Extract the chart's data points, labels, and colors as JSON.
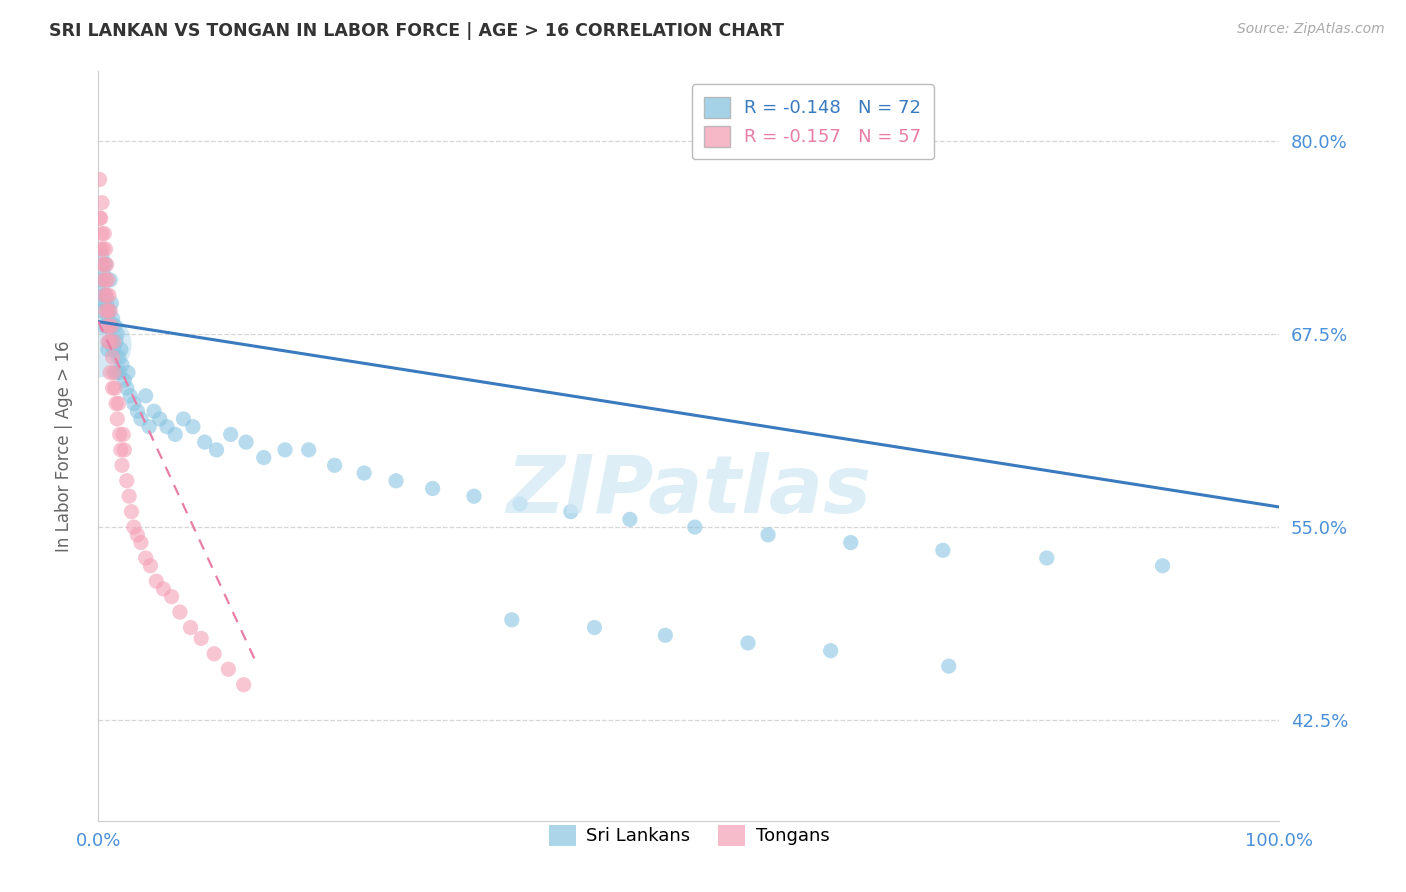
{
  "title": "SRI LANKAN VS TONGAN IN LABOR FORCE | AGE > 16 CORRELATION CHART",
  "source_text": "Source: ZipAtlas.com",
  "ylabel": "In Labor Force | Age > 16",
  "xlim": [
    0.0,
    1.0
  ],
  "ylim": [
    0.36,
    0.845
  ],
  "yticks": [
    0.425,
    0.55,
    0.675,
    0.8
  ],
  "ytick_labels": [
    "42.5%",
    "55.0%",
    "67.5%",
    "80.0%"
  ],
  "xticks": [
    0.0,
    1.0
  ],
  "xtick_labels": [
    "0.0%",
    "100.0%"
  ],
  "sri_lankan_R": -0.148,
  "sri_lankan_N": 72,
  "tongan_R": -0.157,
  "tongan_N": 57,
  "sri_lankan_color": "#89c4e1",
  "tongan_color": "#f4a0b5",
  "sri_lankan_line_color": "#3a7abf",
  "tongan_line_color": "#e87da8",
  "background_color": "#ffffff",
  "grid_color": "#cccccc",
  "title_color": "#333333",
  "axis_label_color": "#666666",
  "tick_label_color": "#4a90d9",
  "watermark": "ZIPatlas",
  "watermark_color": "#d0e8f5",
  "sl_line_x0": 0.0,
  "sl_line_x1": 1.0,
  "sl_line_y0": 0.683,
  "sl_line_y1": 0.563,
  "to_line_x0": 0.0,
  "to_line_x1": 0.135,
  "to_line_y0": 0.683,
  "to_line_y1": 0.46,
  "sl_x": [
    0.001,
    0.002,
    0.003,
    0.003,
    0.004,
    0.004,
    0.005,
    0.005,
    0.006,
    0.006,
    0.007,
    0.007,
    0.008,
    0.008,
    0.009,
    0.009,
    0.01,
    0.01,
    0.011,
    0.012,
    0.012,
    0.013,
    0.014,
    0.015,
    0.015,
    0.016,
    0.017,
    0.018,
    0.019,
    0.02,
    0.022,
    0.024,
    0.025,
    0.027,
    0.03,
    0.033,
    0.036,
    0.04,
    0.043,
    0.047,
    0.052,
    0.058,
    0.065,
    0.072,
    0.08,
    0.09,
    0.1,
    0.112,
    0.125,
    0.14,
    0.158,
    0.178,
    0.2,
    0.225,
    0.252,
    0.283,
    0.318,
    0.357,
    0.4,
    0.45,
    0.505,
    0.567,
    0.637,
    0.715,
    0.803,
    0.901,
    0.35,
    0.42,
    0.48,
    0.55,
    0.62,
    0.72
  ],
  "sl_y": [
    0.69,
    0.71,
    0.705,
    0.725,
    0.695,
    0.715,
    0.68,
    0.7,
    0.72,
    0.7,
    0.68,
    0.695,
    0.665,
    0.685,
    0.67,
    0.69,
    0.71,
    0.68,
    0.695,
    0.67,
    0.685,
    0.665,
    0.68,
    0.67,
    0.65,
    0.675,
    0.66,
    0.65,
    0.665,
    0.655,
    0.645,
    0.64,
    0.65,
    0.635,
    0.63,
    0.625,
    0.62,
    0.635,
    0.615,
    0.625,
    0.62,
    0.615,
    0.61,
    0.62,
    0.615,
    0.605,
    0.6,
    0.61,
    0.605,
    0.595,
    0.6,
    0.6,
    0.59,
    0.585,
    0.58,
    0.575,
    0.57,
    0.565,
    0.56,
    0.555,
    0.55,
    0.545,
    0.54,
    0.535,
    0.53,
    0.525,
    0.49,
    0.485,
    0.48,
    0.475,
    0.47,
    0.46
  ],
  "to_x": [
    0.001,
    0.001,
    0.002,
    0.002,
    0.003,
    0.003,
    0.003,
    0.004,
    0.004,
    0.005,
    0.005,
    0.005,
    0.006,
    0.006,
    0.006,
    0.007,
    0.007,
    0.007,
    0.008,
    0.008,
    0.008,
    0.009,
    0.009,
    0.01,
    0.01,
    0.01,
    0.011,
    0.012,
    0.012,
    0.013,
    0.013,
    0.014,
    0.015,
    0.016,
    0.017,
    0.018,
    0.019,
    0.02,
    0.021,
    0.022,
    0.024,
    0.026,
    0.028,
    0.03,
    0.033,
    0.036,
    0.04,
    0.044,
    0.049,
    0.055,
    0.062,
    0.069,
    0.078,
    0.087,
    0.098,
    0.11,
    0.123
  ],
  "to_y": [
    0.775,
    0.75,
    0.73,
    0.75,
    0.74,
    0.72,
    0.76,
    0.73,
    0.71,
    0.72,
    0.74,
    0.7,
    0.73,
    0.71,
    0.69,
    0.72,
    0.7,
    0.68,
    0.71,
    0.69,
    0.67,
    0.7,
    0.68,
    0.69,
    0.67,
    0.65,
    0.68,
    0.66,
    0.64,
    0.67,
    0.65,
    0.64,
    0.63,
    0.62,
    0.63,
    0.61,
    0.6,
    0.59,
    0.61,
    0.6,
    0.58,
    0.57,
    0.56,
    0.55,
    0.545,
    0.54,
    0.53,
    0.525,
    0.515,
    0.51,
    0.505,
    0.495,
    0.485,
    0.478,
    0.468,
    0.458,
    0.448
  ]
}
